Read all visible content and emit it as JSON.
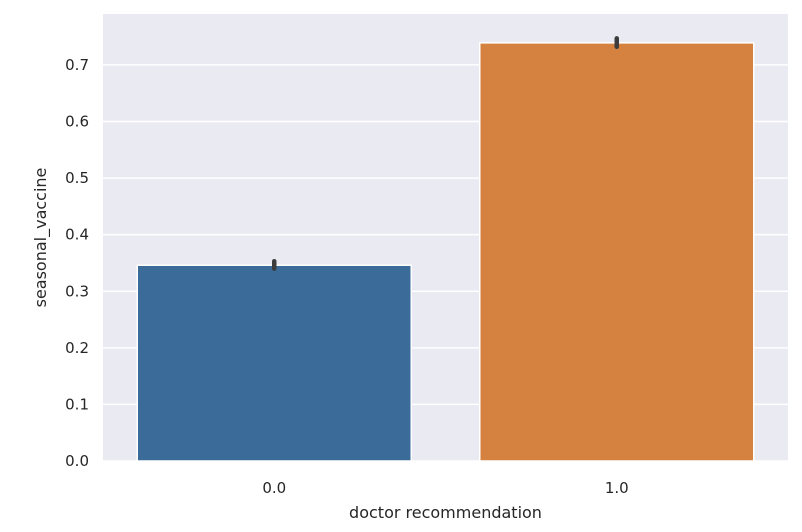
{
  "chart_data": {
    "type": "bar",
    "title": "",
    "xlabel": "doctor recommendation",
    "ylabel": "seasonal_vaccine",
    "categories": [
      "0.0",
      "1.0"
    ],
    "values": [
      0.346,
      0.739
    ],
    "error_bars": [
      [
        0.34,
        0.353
      ],
      [
        0.732,
        0.747
      ]
    ],
    "ylim": [
      0,
      0.79
    ],
    "yticks": [
      0.0,
      0.1,
      0.2,
      0.3,
      0.4,
      0.5,
      0.6,
      0.7
    ],
    "ytick_labels": [
      "0.0",
      "0.1",
      "0.2",
      "0.3",
      "0.4",
      "0.5",
      "0.6",
      "0.7"
    ],
    "colors": [
      "#3a6b99",
      "#d58240"
    ],
    "background": "#eaeaf2",
    "grid": true,
    "legend": "none"
  }
}
